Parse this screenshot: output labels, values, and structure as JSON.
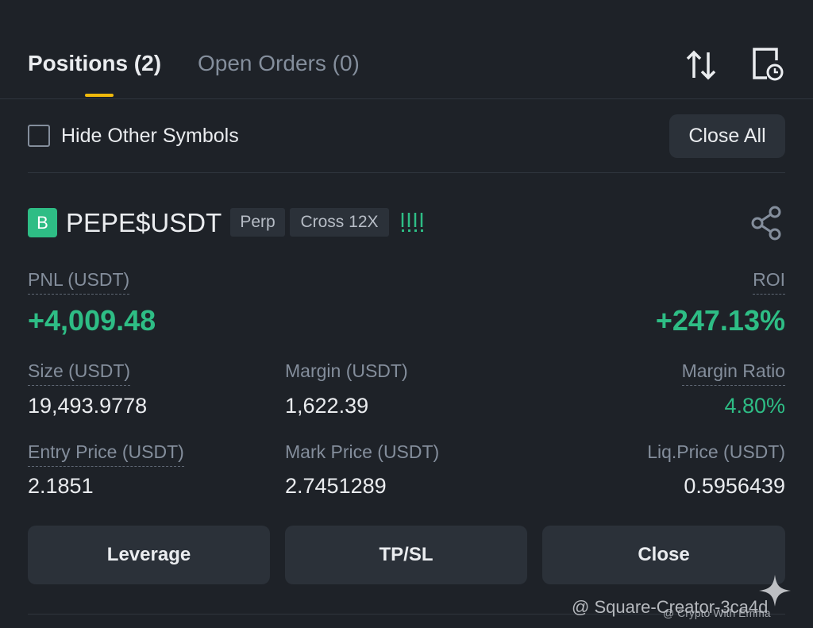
{
  "tabs": {
    "positions": "Positions (2)",
    "open_orders": "Open Orders (0)"
  },
  "filter": {
    "label": "Hide Other Symbols",
    "close_all": "Close All"
  },
  "position": {
    "badge": "B",
    "symbol": "PEPE$USDT",
    "tags": [
      "Perp",
      "Cross 12X"
    ],
    "pnl": {
      "label": "PNL (USDT)",
      "value": "+4,009.48"
    },
    "roi": {
      "label": "ROI",
      "value": "+247.13%"
    },
    "fields": [
      {
        "label": "Size (USDT)",
        "value": "19,493.9778"
      },
      {
        "label": "Margin (USDT)",
        "value": "1,622.39"
      },
      {
        "label": "Margin Ratio",
        "value": "4.80%"
      },
      {
        "label": "Entry Price (USDT)",
        "value": "2.1851"
      },
      {
        "label": "Mark Price (USDT)",
        "value": "2.7451289"
      },
      {
        "label": "Liq.Price (USDT)",
        "value": "0.5956439"
      }
    ],
    "buttons": [
      "Leverage",
      "TP/SL",
      "Close"
    ]
  },
  "watermarks": [
    "@ Square-Creator-3ca4d",
    "@ Crypto With Emma"
  ]
}
